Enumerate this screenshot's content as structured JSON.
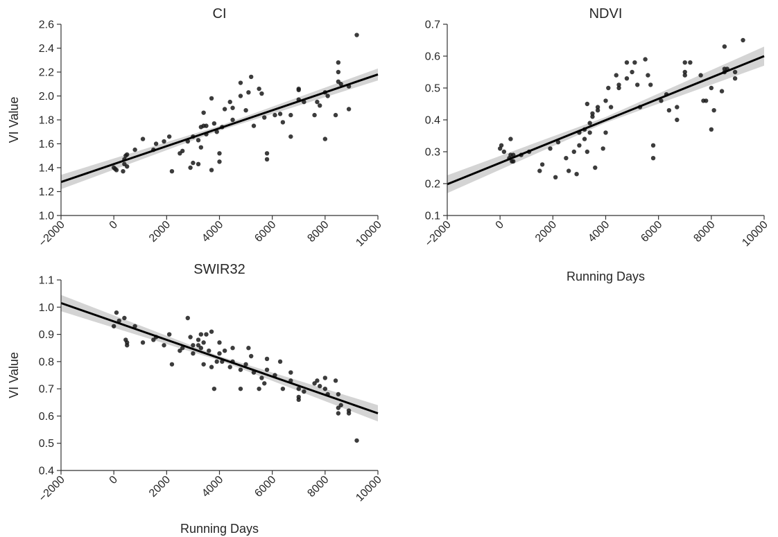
{
  "chart_data": [
    {
      "type": "scatter",
      "title": "CI",
      "xlabel": "",
      "ylabel": "VI Value",
      "xlim": [
        -2000,
        10000
      ],
      "ylim": [
        1.0,
        2.6
      ],
      "xticks": [
        "−2000",
        "0",
        "2000",
        "4000",
        "6000",
        "8000",
        "10000"
      ],
      "yticks": [
        "1.0",
        "1.2",
        "1.4",
        "1.6",
        "1.8",
        "2.0",
        "2.2",
        "2.4",
        "2.6"
      ],
      "fit_line": {
        "x": [
          -2000,
          10000
        ],
        "y": [
          1.28,
          2.18
        ]
      },
      "confidence_band": {
        "x": [
          -2000,
          4000,
          10000
        ],
        "lower": [
          1.22,
          1.71,
          2.13
        ],
        "upper": [
          1.34,
          1.75,
          2.23
        ]
      },
      "points": [
        [
          0,
          1.4
        ],
        [
          50,
          1.39
        ],
        [
          100,
          1.38
        ],
        [
          350,
          1.37
        ],
        [
          400,
          1.43
        ],
        [
          400,
          1.47
        ],
        [
          450,
          1.5
        ],
        [
          500,
          1.51
        ],
        [
          500,
          1.41
        ],
        [
          800,
          1.55
        ],
        [
          1100,
          1.64
        ],
        [
          1500,
          1.55
        ],
        [
          1600,
          1.6
        ],
        [
          1900,
          1.62
        ],
        [
          2100,
          1.66
        ],
        [
          2200,
          1.37
        ],
        [
          2500,
          1.52
        ],
        [
          2600,
          1.54
        ],
        [
          2800,
          1.62
        ],
        [
          2900,
          1.4
        ],
        [
          3000,
          1.66
        ],
        [
          3000,
          1.44
        ],
        [
          3200,
          1.43
        ],
        [
          3200,
          1.63
        ],
        [
          3300,
          1.57
        ],
        [
          3300,
          1.74
        ],
        [
          3400,
          1.75
        ],
        [
          3400,
          1.86
        ],
        [
          3500,
          1.75
        ],
        [
          3500,
          1.68
        ],
        [
          3700,
          1.98
        ],
        [
          3700,
          1.38
        ],
        [
          3800,
          1.77
        ],
        [
          3900,
          1.7
        ],
        [
          4000,
          1.52
        ],
        [
          4000,
          1.45
        ],
        [
          4100,
          1.74
        ],
        [
          4200,
          1.89
        ],
        [
          4400,
          1.95
        ],
        [
          4500,
          1.9
        ],
        [
          4500,
          1.8
        ],
        [
          4800,
          2.11
        ],
        [
          4800,
          2.0
        ],
        [
          5000,
          1.88
        ],
        [
          5100,
          2.03
        ],
        [
          5200,
          2.16
        ],
        [
          5300,
          1.75
        ],
        [
          5500,
          2.06
        ],
        [
          5600,
          2.02
        ],
        [
          5700,
          1.82
        ],
        [
          5800,
          1.47
        ],
        [
          5800,
          1.52
        ],
        [
          6100,
          1.84
        ],
        [
          6300,
          1.85
        ],
        [
          6400,
          1.78
        ],
        [
          6700,
          1.84
        ],
        [
          6700,
          1.66
        ],
        [
          7000,
          2.06
        ],
        [
          7000,
          2.05
        ],
        [
          7000,
          1.97
        ],
        [
          7200,
          1.95
        ],
        [
          7600,
          1.84
        ],
        [
          7700,
          1.95
        ],
        [
          7800,
          1.92
        ],
        [
          8000,
          1.64
        ],
        [
          8000,
          2.03
        ],
        [
          8100,
          2.0
        ],
        [
          8400,
          1.84
        ],
        [
          8500,
          2.2
        ],
        [
          8500,
          2.28
        ],
        [
          8500,
          2.12
        ],
        [
          8600,
          2.1
        ],
        [
          8900,
          2.08
        ],
        [
          8900,
          1.89
        ],
        [
          9200,
          2.51
        ]
      ]
    },
    {
      "type": "scatter",
      "title": "NDVI",
      "xlabel": "Running Days",
      "ylabel": "",
      "xlim": [
        -2000,
        10000
      ],
      "ylim": [
        0.1,
        0.7
      ],
      "xticks": [
        "−2000",
        "0",
        "2000",
        "4000",
        "6000",
        "8000",
        "10000"
      ],
      "yticks": [
        "0.1",
        "0.2",
        "0.3",
        "0.4",
        "0.5",
        "0.6",
        "0.7"
      ],
      "fit_line": {
        "x": [
          -2000,
          10000
        ],
        "y": [
          0.198,
          0.6
        ]
      },
      "confidence_band": {
        "x": [
          -2000,
          4000,
          10000
        ],
        "lower": [
          0.17,
          0.391,
          0.57
        ],
        "upper": [
          0.226,
          0.409,
          0.63
        ]
      },
      "points": [
        [
          0,
          0.31
        ],
        [
          50,
          0.32
        ],
        [
          150,
          0.3
        ],
        [
          350,
          0.28
        ],
        [
          400,
          0.29
        ],
        [
          400,
          0.34
        ],
        [
          450,
          0.27
        ],
        [
          500,
          0.29
        ],
        [
          500,
          0.27
        ],
        [
          800,
          0.29
        ],
        [
          1100,
          0.3
        ],
        [
          1500,
          0.24
        ],
        [
          1600,
          0.26
        ],
        [
          1900,
          0.31
        ],
        [
          2100,
          0.22
        ],
        [
          2200,
          0.33
        ],
        [
          2500,
          0.28
        ],
        [
          2600,
          0.24
        ],
        [
          2800,
          0.3
        ],
        [
          2900,
          0.23
        ],
        [
          3000,
          0.36
        ],
        [
          3000,
          0.32
        ],
        [
          3200,
          0.34
        ],
        [
          3200,
          0.37
        ],
        [
          3300,
          0.45
        ],
        [
          3300,
          0.3
        ],
        [
          3400,
          0.39
        ],
        [
          3400,
          0.36
        ],
        [
          3500,
          0.41
        ],
        [
          3500,
          0.42
        ],
        [
          3600,
          0.25
        ],
        [
          3700,
          0.44
        ],
        [
          3700,
          0.43
        ],
        [
          3900,
          0.31
        ],
        [
          4000,
          0.36
        ],
        [
          4000,
          0.46
        ],
        [
          4100,
          0.5
        ],
        [
          4200,
          0.44
        ],
        [
          4400,
          0.54
        ],
        [
          4500,
          0.51
        ],
        [
          4500,
          0.5
        ],
        [
          4800,
          0.58
        ],
        [
          4800,
          0.53
        ],
        [
          5000,
          0.55
        ],
        [
          5100,
          0.58
        ],
        [
          5200,
          0.51
        ],
        [
          5300,
          0.44
        ],
        [
          5500,
          0.59
        ],
        [
          5600,
          0.54
        ],
        [
          5700,
          0.51
        ],
        [
          5800,
          0.28
        ],
        [
          5800,
          0.32
        ],
        [
          6100,
          0.46
        ],
        [
          6300,
          0.48
        ],
        [
          6400,
          0.43
        ],
        [
          6700,
          0.44
        ],
        [
          6700,
          0.4
        ],
        [
          7000,
          0.58
        ],
        [
          7000,
          0.55
        ],
        [
          7000,
          0.54
        ],
        [
          7200,
          0.58
        ],
        [
          7600,
          0.54
        ],
        [
          7700,
          0.46
        ],
        [
          7800,
          0.46
        ],
        [
          8000,
          0.37
        ],
        [
          8000,
          0.5
        ],
        [
          8100,
          0.43
        ],
        [
          8400,
          0.49
        ],
        [
          8500,
          0.63
        ],
        [
          8500,
          0.56
        ],
        [
          8500,
          0.55
        ],
        [
          8600,
          0.56
        ],
        [
          8900,
          0.55
        ],
        [
          8900,
          0.53
        ],
        [
          9200,
          0.65
        ]
      ]
    },
    {
      "type": "scatter",
      "title": "SWIR32",
      "xlabel": "Running Days",
      "ylabel": "VI Value",
      "xlim": [
        -2000,
        10000
      ],
      "ylim": [
        0.4,
        1.1
      ],
      "xticks": [
        "−2000",
        "0",
        "2000",
        "4000",
        "6000",
        "8000",
        "10000"
      ],
      "yticks": [
        "0.4",
        "0.5",
        "0.6",
        "0.7",
        "0.8",
        "0.9",
        "1.0",
        "1.1"
      ],
      "fit_line": {
        "x": [
          -2000,
          10000
        ],
        "y": [
          1.015,
          0.61
        ]
      },
      "confidence_band": {
        "x": [
          -2000,
          4000,
          10000
        ],
        "lower": [
          0.985,
          0.804,
          0.58
        ],
        "upper": [
          1.045,
          0.82,
          0.64
        ]
      },
      "points": [
        [
          0,
          0.93
        ],
        [
          100,
          0.98
        ],
        [
          200,
          0.95
        ],
        [
          400,
          0.96
        ],
        [
          450,
          0.88
        ],
        [
          500,
          0.86
        ],
        [
          500,
          0.87
        ],
        [
          800,
          0.93
        ],
        [
          1100,
          0.87
        ],
        [
          1500,
          0.88
        ],
        [
          1600,
          0.89
        ],
        [
          1900,
          0.86
        ],
        [
          2100,
          0.9
        ],
        [
          2200,
          0.79
        ],
        [
          2500,
          0.84
        ],
        [
          2600,
          0.85
        ],
        [
          2800,
          0.96
        ],
        [
          2900,
          0.89
        ],
        [
          3000,
          0.83
        ],
        [
          3000,
          0.86
        ],
        [
          3200,
          0.88
        ],
        [
          3200,
          0.86
        ],
        [
          3300,
          0.85
        ],
        [
          3300,
          0.9
        ],
        [
          3400,
          0.79
        ],
        [
          3400,
          0.87
        ],
        [
          3500,
          0.9
        ],
        [
          3600,
          0.84
        ],
        [
          3700,
          0.91
        ],
        [
          3700,
          0.78
        ],
        [
          3800,
          0.7
        ],
        [
          3900,
          0.8
        ],
        [
          4000,
          0.87
        ],
        [
          4000,
          0.83
        ],
        [
          4100,
          0.8
        ],
        [
          4200,
          0.84
        ],
        [
          4400,
          0.78
        ],
        [
          4500,
          0.8
        ],
        [
          4500,
          0.85
        ],
        [
          4800,
          0.7
        ],
        [
          4800,
          0.77
        ],
        [
          5000,
          0.79
        ],
        [
          5100,
          0.85
        ],
        [
          5200,
          0.82
        ],
        [
          5300,
          0.76
        ],
        [
          5500,
          0.7
        ],
        [
          5600,
          0.74
        ],
        [
          5700,
          0.72
        ],
        [
          5800,
          0.81
        ],
        [
          5800,
          0.77
        ],
        [
          6100,
          0.75
        ],
        [
          6300,
          0.8
        ],
        [
          6400,
          0.7
        ],
        [
          6700,
          0.76
        ],
        [
          6700,
          0.73
        ],
        [
          7000,
          0.66
        ],
        [
          7000,
          0.67
        ],
        [
          7000,
          0.7
        ],
        [
          7200,
          0.69
        ],
        [
          7600,
          0.72
        ],
        [
          7700,
          0.73
        ],
        [
          7800,
          0.71
        ],
        [
          8000,
          0.74
        ],
        [
          8000,
          0.7
        ],
        [
          8100,
          0.68
        ],
        [
          8400,
          0.73
        ],
        [
          8500,
          0.61
        ],
        [
          8500,
          0.68
        ],
        [
          8500,
          0.63
        ],
        [
          8600,
          0.64
        ],
        [
          8900,
          0.62
        ],
        [
          8900,
          0.61
        ],
        [
          9200,
          0.51
        ]
      ]
    }
  ]
}
